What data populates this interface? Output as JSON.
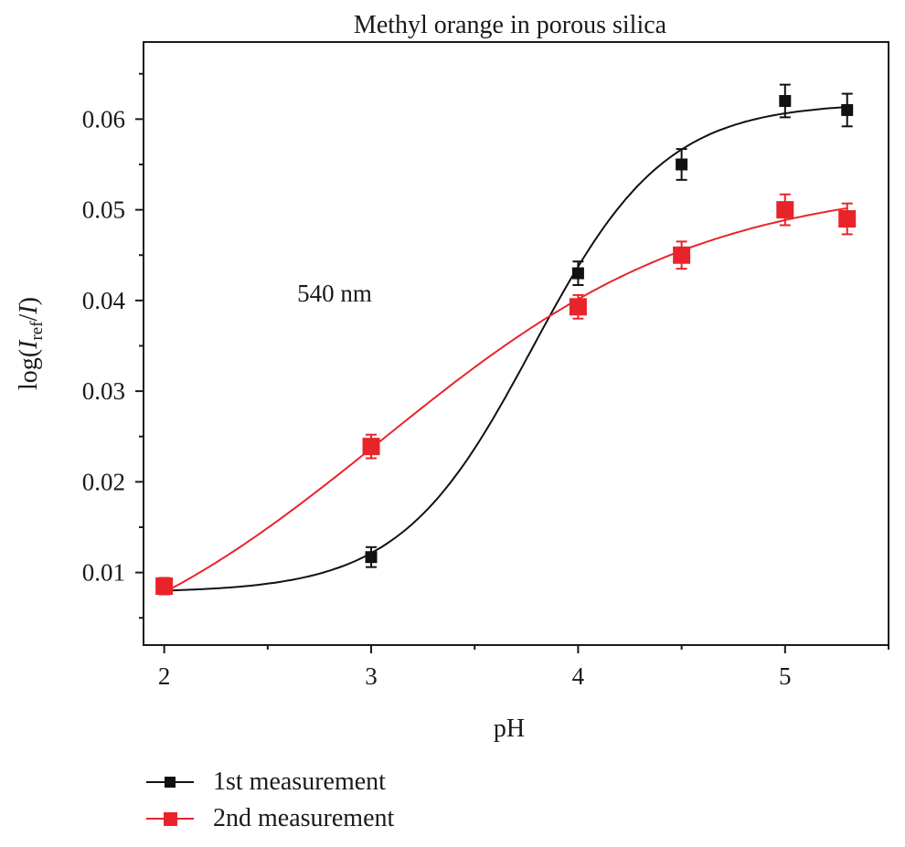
{
  "chart_data": {
    "type": "scatter",
    "title": "Methyl orange in porous silica",
    "xlabel": "pH",
    "ylabel": {
      "prefix": "log(",
      "i1": "I",
      "sub": "ref",
      "slash": "/",
      "i2": "I",
      "suffix": ")"
    },
    "annotation": "540 nm",
    "xlim": [
      1.9,
      5.5
    ],
    "ylim": [
      0.002,
      0.0685
    ],
    "xticks": [
      2,
      3,
      4,
      5
    ],
    "xtick_labels": [
      "2",
      "3",
      "4",
      "5"
    ],
    "xminor": [
      2.5,
      3.5,
      4.5,
      5.5
    ],
    "yticks": [
      0.01,
      0.02,
      0.03,
      0.04,
      0.05,
      0.06
    ],
    "ytick_labels": [
      "0.01",
      "0.02",
      "0.03",
      "0.04",
      "0.05",
      "0.06"
    ],
    "yminor": [
      0.005,
      0.015,
      0.025,
      0.035,
      0.045,
      0.055,
      0.065
    ],
    "grid": false,
    "legend_position": "bottom-left, below plot",
    "series": [
      {
        "name": "1st measurement",
        "color": "#111111",
        "marker": "square-small",
        "x": [
          2,
          3,
          4,
          4.5,
          5,
          5.3
        ],
        "y": [
          0.0085,
          0.0117,
          0.043,
          0.055,
          0.062,
          0.061
        ],
        "err": [
          0.0009,
          0.0011,
          0.0013,
          0.0017,
          0.0018,
          0.0018
        ],
        "fit": {
          "model": "sigmoid",
          "base": 0.0078,
          "top": 0.0618,
          "x0": 3.78,
          "width": 0.32
        }
      },
      {
        "name": "2nd measurement",
        "color": "#e8242a",
        "marker": "square-large",
        "x": [
          2,
          3,
          4,
          4.5,
          5,
          5.3
        ],
        "y": [
          0.0085,
          0.0239,
          0.0393,
          0.045,
          0.05,
          0.049
        ],
        "err": [
          0.0009,
          0.0013,
          0.0013,
          0.0015,
          0.0017,
          0.0017
        ],
        "fit": {
          "model": "sigmoid",
          "base": -0.004,
          "top": 0.0532,
          "x0": 3.05,
          "width": 0.78
        }
      }
    ]
  }
}
